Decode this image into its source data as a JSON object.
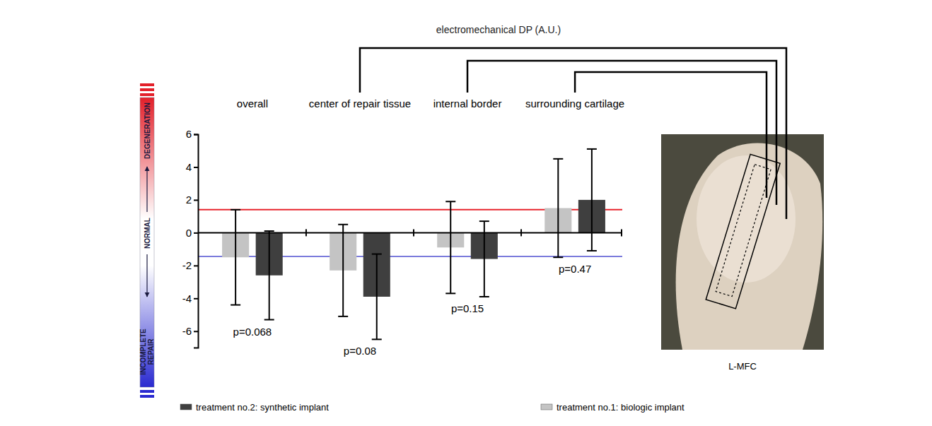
{
  "chart_data": {
    "type": "bar",
    "title": "electromechanical DP (A.U.)",
    "categories": [
      "overall",
      "center of repair tissue",
      "internal border",
      "surrounding cartilage"
    ],
    "series": [
      {
        "name": "treatment no.1: biologic implant",
        "color": "#c4c4c4",
        "values": [
          -1.5,
          -2.3,
          -0.9,
          1.5
        ],
        "errors": [
          2.9,
          2.8,
          2.8,
          3.0
        ]
      },
      {
        "name": "treatment no.2: synthetic implant",
        "color": "#3f3f3f",
        "values": [
          -2.6,
          -3.9,
          -1.6,
          2.0
        ],
        "errors": [
          2.7,
          2.6,
          2.3,
          3.1
        ]
      }
    ],
    "ylim": [
      -7,
      6
    ],
    "yticks": [
      -6,
      -4,
      -2,
      0,
      2,
      4,
      6
    ],
    "annotations": [
      "p=0.068",
      "p=0.08",
      "p=0.15",
      "p=0.47"
    ],
    "reference_lines": [
      {
        "value": 1.4,
        "color": "#e8242c"
      },
      {
        "value": -1.45,
        "color": "#7b7bdc"
      }
    ],
    "scale_labels": [
      "DEGENERATION",
      "NORMAL",
      "INCOMPLETE REPAIR"
    ],
    "image_label": "L-MFC",
    "legend": "bottom"
  }
}
